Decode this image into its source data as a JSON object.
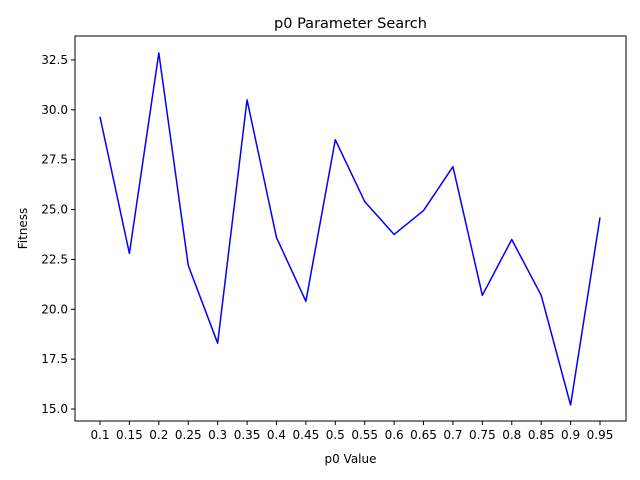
{
  "chart_data": {
    "type": "line",
    "title": "p0 Parameter Search",
    "xlabel": "p0 Value",
    "ylabel": "Fitness",
    "categories": [
      "0.1",
      "0.15",
      "0.2",
      "0.25",
      "0.3",
      "0.35",
      "0.4",
      "0.45",
      "0.5",
      "0.55",
      "0.6",
      "0.65",
      "0.7",
      "0.75",
      "0.8",
      "0.85",
      "0.9",
      "0.95"
    ],
    "series": [
      {
        "color": "#0000ff",
        "values": [
          29.65,
          22.8,
          32.85,
          22.2,
          18.3,
          30.5,
          23.6,
          20.4,
          28.5,
          25.4,
          23.75,
          24.95,
          27.15,
          20.7,
          23.5,
          20.7,
          15.2,
          24.6
        ]
      }
    ],
    "ylim": [
      14.4,
      33.7
    ],
    "yticks": [
      "15.0",
      "17.5",
      "20.0",
      "22.5",
      "25.0",
      "27.5",
      "30.0",
      "32.5"
    ],
    "grid": false,
    "legend": "none"
  }
}
